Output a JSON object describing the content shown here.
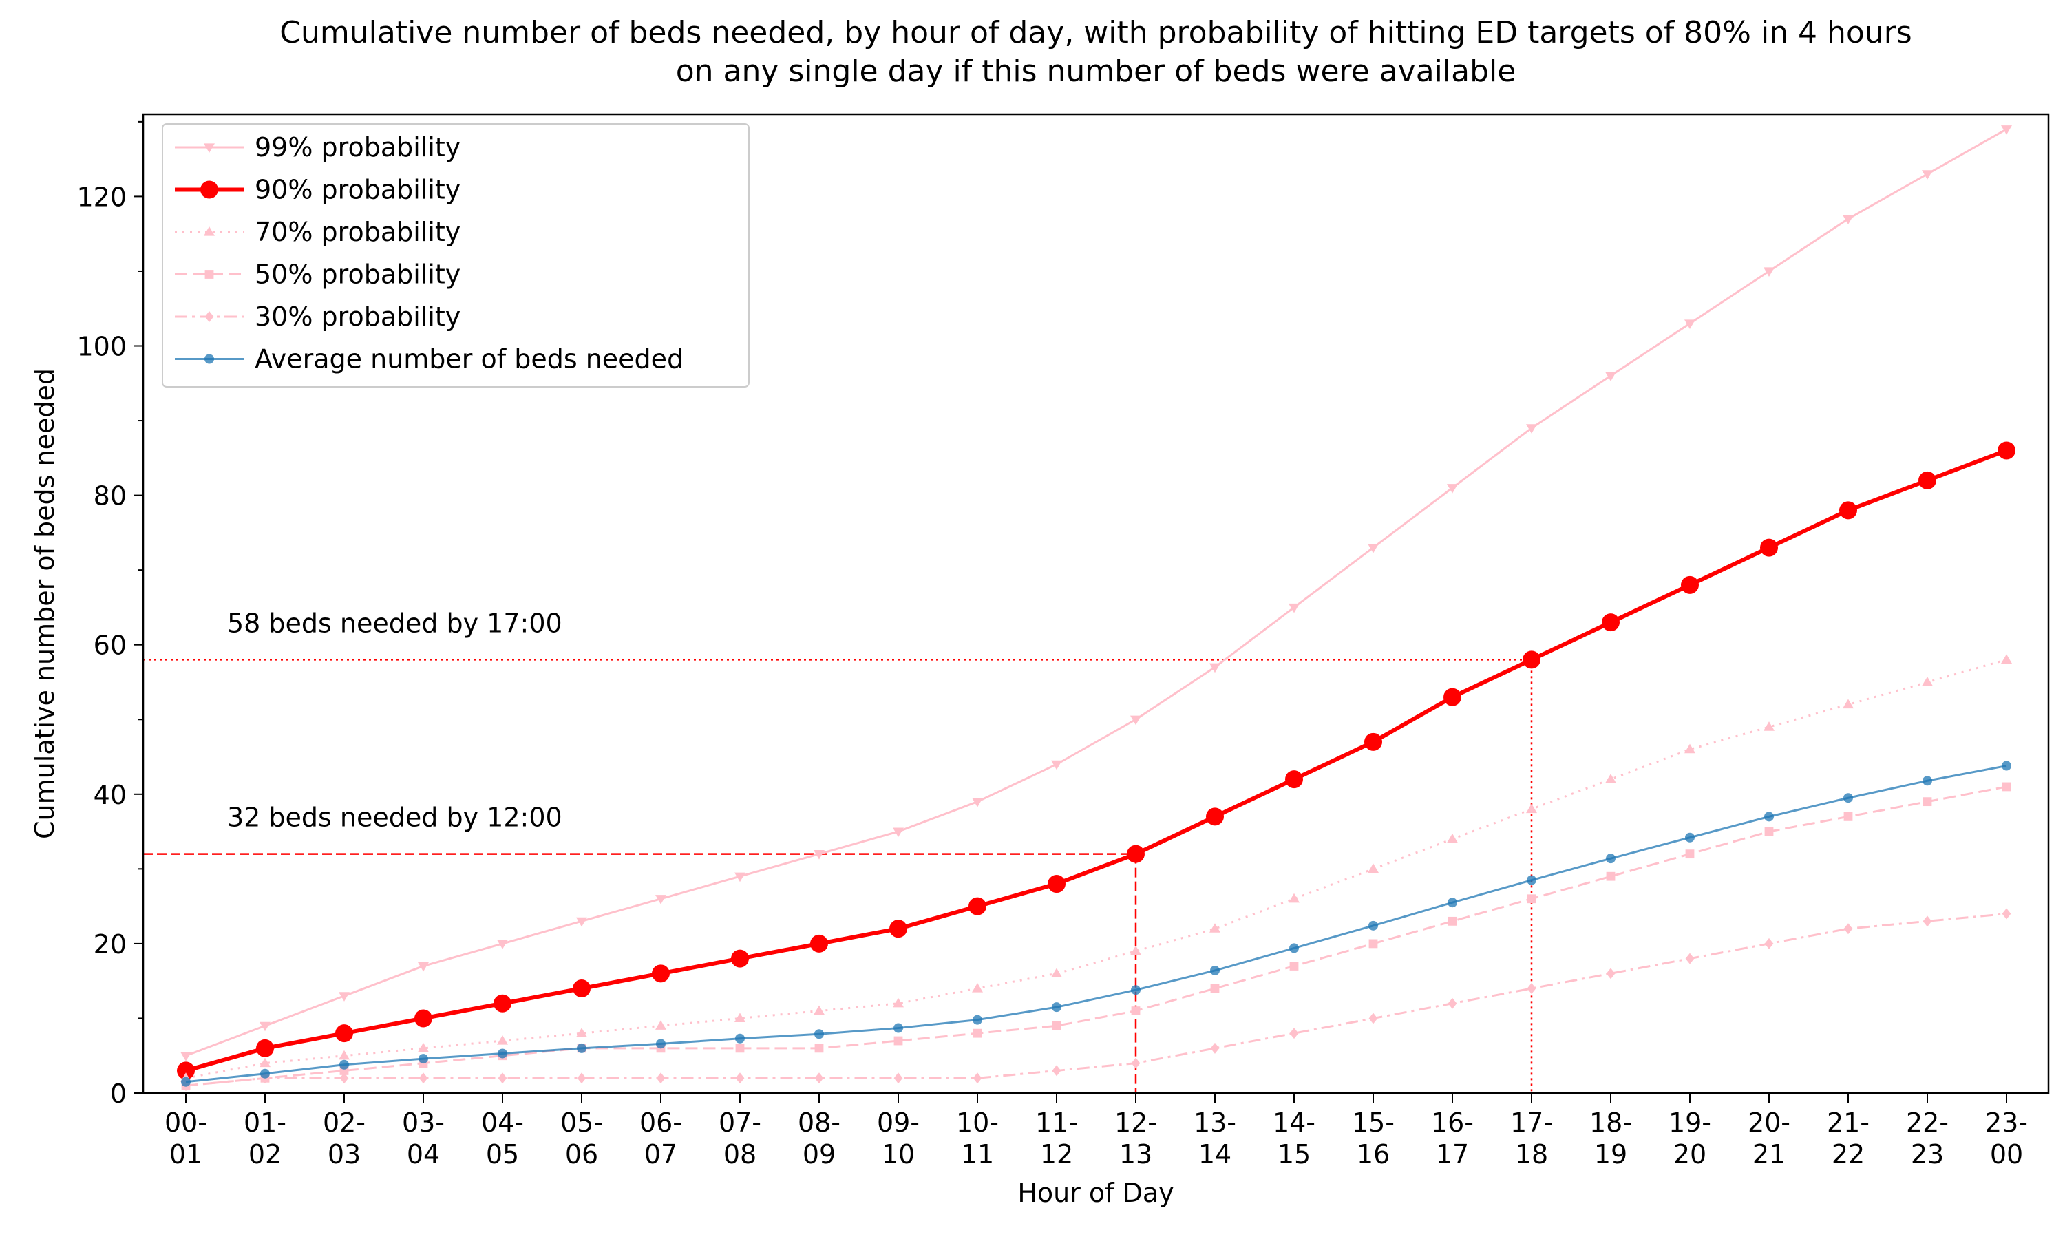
{
  "chart_data": {
    "type": "line",
    "title": [
      "Cumulative number of beds needed, by hour of day, with probability of hitting ED targets of 80% in 4 hours",
      "on any single day if this number of beds were available"
    ],
    "xlabel": "Hour of Day",
    "ylabel": "Cumulative number of beds needed",
    "ylim": [
      0,
      131
    ],
    "yticks": [
      0,
      20,
      40,
      60,
      80,
      100,
      120
    ],
    "grid": false,
    "legend_position": "top-left",
    "categories": [
      [
        "00-",
        "01"
      ],
      [
        "01-",
        "02"
      ],
      [
        "02-",
        "03"
      ],
      [
        "03-",
        "04"
      ],
      [
        "04-",
        "05"
      ],
      [
        "05-",
        "06"
      ],
      [
        "06-",
        "07"
      ],
      [
        "07-",
        "08"
      ],
      [
        "08-",
        "09"
      ],
      [
        "09-",
        "10"
      ],
      [
        "10-",
        "11"
      ],
      [
        "11-",
        "12"
      ],
      [
        "12-",
        "13"
      ],
      [
        "13-",
        "14"
      ],
      [
        "14-",
        "15"
      ],
      [
        "15-",
        "16"
      ],
      [
        "16-",
        "17"
      ],
      [
        "17-",
        "18"
      ],
      [
        "18-",
        "19"
      ],
      [
        "19-",
        "20"
      ],
      [
        "20-",
        "21"
      ],
      [
        "21-",
        "22"
      ],
      [
        "22-",
        "23"
      ],
      [
        "23-",
        "00"
      ]
    ],
    "series": [
      {
        "name": "99% probability",
        "color": "#ffc0cb",
        "marker": "triangle-down",
        "dash": "solid",
        "highlight": false,
        "values": [
          5,
          9,
          13,
          17,
          20,
          23,
          26,
          29,
          32,
          35,
          39,
          44,
          50,
          57,
          65,
          73,
          81,
          89,
          96,
          103,
          110,
          117,
          123,
          129
        ]
      },
      {
        "name": "90% probability",
        "color": "#ff0000",
        "marker": "circle",
        "dash": "solid",
        "highlight": true,
        "values": [
          3,
          6,
          8,
          10,
          12,
          14,
          16,
          18,
          20,
          22,
          25,
          28,
          32,
          37,
          42,
          47,
          53,
          58,
          63,
          68,
          73,
          78,
          82,
          86
        ]
      },
      {
        "name": "70% probability",
        "color": "#ffc0cb",
        "marker": "triangle-up",
        "dash": "dotted",
        "highlight": false,
        "values": [
          2,
          4,
          5,
          6,
          7,
          8,
          9,
          10,
          11,
          12,
          14,
          16,
          19,
          22,
          26,
          30,
          34,
          38,
          42,
          46,
          49,
          52,
          55,
          58
        ]
      },
      {
        "name": "50% probability",
        "color": "#ffc0cb",
        "marker": "square",
        "dash": "dashed",
        "highlight": false,
        "values": [
          1,
          2,
          3,
          4,
          5,
          6,
          6,
          6,
          6,
          7,
          8,
          9,
          11,
          14,
          17,
          20,
          23,
          26,
          29,
          32,
          35,
          37,
          39,
          41
        ]
      },
      {
        "name": "30% probability",
        "color": "#ffc0cb",
        "marker": "diamond",
        "dash": "dashdot",
        "highlight": false,
        "values": [
          1,
          2,
          2,
          2,
          2,
          2,
          2,
          2,
          2,
          2,
          2,
          3,
          4,
          6,
          8,
          10,
          12,
          14,
          16,
          18,
          20,
          22,
          23,
          24
        ]
      },
      {
        "name": "Average number of  beds needed",
        "color": "#1f77b4",
        "marker": "dot",
        "dash": "solid",
        "highlight": false,
        "opacity": 0.75,
        "values": [
          1.5,
          2.6,
          3.8,
          4.6,
          5.3,
          6.0,
          6.6,
          7.3,
          7.9,
          8.7,
          9.8,
          11.5,
          13.8,
          16.4,
          19.4,
          22.4,
          25.5,
          28.5,
          31.4,
          34.2,
          37.0,
          39.5,
          41.8,
          43.8
        ]
      }
    ],
    "annotations": [
      {
        "text": "58  beds needed by 17:00",
        "value": 58,
        "category_index": 17,
        "line": "dotted",
        "color": "#ff0000"
      },
      {
        "text": "32  beds needed by 12:00",
        "value": 32,
        "category_index": 12,
        "line": "dashed",
        "color": "#ff0000"
      }
    ]
  }
}
